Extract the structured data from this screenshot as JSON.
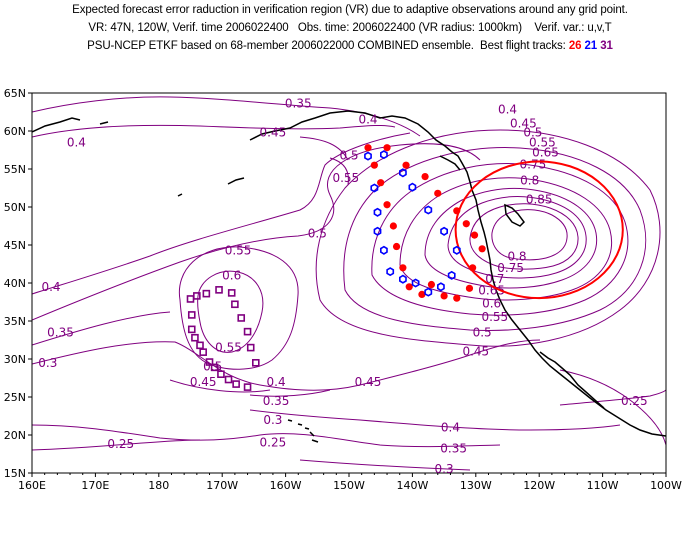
{
  "header": {
    "line1": "Expected forecast error raduction in verification region (VR) due to adaptive observations around any grid point.",
    "line2": "VR: 47N, 120W, Verif. time 2006022400   Obs. time: 2006022400 (VR radius: 1000km)    Verif. var.: u,v,T",
    "line3": "PSU-NCEP ETKF based on 68-member 2006022000 COMBINED ensemble.  Best flight tracks: ",
    "tracks": [
      "26",
      "21",
      "31"
    ]
  },
  "colors": {
    "contour": "#800080",
    "track26": "#ff0000",
    "track21": "#0000ff",
    "track31": "#800080",
    "circle": "#ff0000"
  },
  "axes": {
    "lon_labels": [
      "160E",
      "170E",
      "180",
      "170W",
      "160W",
      "150W",
      "140W",
      "130W",
      "120W",
      "110W",
      "100W"
    ],
    "lat_labels": [
      "15N",
      "20N",
      "25N",
      "30N",
      "35N",
      "40N",
      "45N",
      "50N",
      "55N",
      "60N",
      "65N"
    ],
    "lon_range": [
      160,
      260
    ],
    "lat_range": [
      15,
      65
    ]
  },
  "verification_region": {
    "lat": 47,
    "lon": 240,
    "radius_km": 1000
  },
  "contour_labels": [
    {
      "text": "0.35",
      "lon": 202,
      "lat": 63.6
    },
    {
      "text": "0.4",
      "lon": 213,
      "lat": 61.5
    },
    {
      "text": "0.4",
      "lon": 167,
      "lat": 58.5
    },
    {
      "text": "0.45",
      "lon": 198,
      "lat": 59.8
    },
    {
      "text": "0.5",
      "lon": 210,
      "lat": 56.8
    },
    {
      "text": "0.55",
      "lon": 209.5,
      "lat": 53.8
    },
    {
      "text": "0.4",
      "lon": 235,
      "lat": 62.8
    },
    {
      "text": "0.45",
      "lon": 237.5,
      "lat": 61
    },
    {
      "text": "0.5",
      "lon": 239,
      "lat": 59.8
    },
    {
      "text": "0.55",
      "lon": 240.5,
      "lat": 58.5
    },
    {
      "text": "0.65",
      "lon": 241,
      "lat": 57.2
    },
    {
      "text": "0.75",
      "lon": 239,
      "lat": 55.6
    },
    {
      "text": "0.8",
      "lon": 238.5,
      "lat": 53.5
    },
    {
      "text": "0.85",
      "lon": 240,
      "lat": 51
    },
    {
      "text": "0.8",
      "lon": 236.5,
      "lat": 43.5
    },
    {
      "text": "0.75",
      "lon": 235.5,
      "lat": 42
    },
    {
      "text": "0.7",
      "lon": 233,
      "lat": 40.5
    },
    {
      "text": "0.65",
      "lon": 232.5,
      "lat": 39
    },
    {
      "text": "0.6",
      "lon": 232.5,
      "lat": 37.3
    },
    {
      "text": "0.55",
      "lon": 233,
      "lat": 35.5
    },
    {
      "text": "0.5",
      "lon": 231,
      "lat": 33.5
    },
    {
      "text": "0.45",
      "lon": 230,
      "lat": 31
    },
    {
      "text": "0.5",
      "lon": 205,
      "lat": 46.5
    },
    {
      "text": "0.55",
      "lon": 192.5,
      "lat": 44.3
    },
    {
      "text": "0.6",
      "lon": 191.5,
      "lat": 41
    },
    {
      "text": "0.4",
      "lon": 163,
      "lat": 39.5
    },
    {
      "text": "0.35",
      "lon": 164.5,
      "lat": 33.5
    },
    {
      "text": "0.3",
      "lon": 162.5,
      "lat": 29.5
    },
    {
      "text": "0.55",
      "lon": 191,
      "lat": 31.5
    },
    {
      "text": "0.5",
      "lon": 188.5,
      "lat": 29
    },
    {
      "text": "0.45",
      "lon": 187,
      "lat": 27
    },
    {
      "text": "0.4",
      "lon": 198.5,
      "lat": 27
    },
    {
      "text": "0.35",
      "lon": 198.5,
      "lat": 24.5
    },
    {
      "text": "0.3",
      "lon": 198,
      "lat": 22
    },
    {
      "text": "0.45",
      "lon": 213,
      "lat": 27
    },
    {
      "text": "0.25",
      "lon": 174,
      "lat": 18.8
    },
    {
      "text": "0.25",
      "lon": 198,
      "lat": 19
    },
    {
      "text": "0.4",
      "lon": 226,
      "lat": 21
    },
    {
      "text": "0.35",
      "lon": 226.5,
      "lat": 18.2
    },
    {
      "text": "0.3",
      "lon": 225,
      "lat": 15.5
    },
    {
      "text": "0.25",
      "lon": 255,
      "lat": 24.5
    }
  ],
  "tracks": {
    "track26": [
      {
        "lon": 213,
        "lat": 57.8
      },
      {
        "lon": 214,
        "lat": 55.5
      },
      {
        "lon": 215,
        "lat": 53.2
      },
      {
        "lon": 216,
        "lat": 50.3
      },
      {
        "lon": 217,
        "lat": 47.5
      },
      {
        "lon": 217.5,
        "lat": 44.8
      },
      {
        "lon": 218.5,
        "lat": 42
      },
      {
        "lon": 219.5,
        "lat": 39.5
      },
      {
        "lon": 221.5,
        "lat": 38.5
      },
      {
        "lon": 223,
        "lat": 39.8
      },
      {
        "lon": 225,
        "lat": 38.3
      },
      {
        "lon": 227,
        "lat": 38
      },
      {
        "lon": 229,
        "lat": 39.3
      },
      {
        "lon": 229.5,
        "lat": 42
      },
      {
        "lon": 231,
        "lat": 44.5
      },
      {
        "lon": 229.8,
        "lat": 46.3
      },
      {
        "lon": 228.5,
        "lat": 47.8
      },
      {
        "lon": 227,
        "lat": 49.5
      },
      {
        "lon": 224,
        "lat": 51.8
      },
      {
        "lon": 222,
        "lat": 54
      },
      {
        "lon": 219,
        "lat": 55.5
      },
      {
        "lon": 216,
        "lat": 57.8
      }
    ],
    "track21": [
      {
        "lon": 213,
        "lat": 56.7
      },
      {
        "lon": 214,
        "lat": 52.5
      },
      {
        "lon": 214.5,
        "lat": 49.3
      },
      {
        "lon": 214.5,
        "lat": 46.8
      },
      {
        "lon": 215.5,
        "lat": 44.3
      },
      {
        "lon": 216.5,
        "lat": 41.5
      },
      {
        "lon": 218.5,
        "lat": 40.5
      },
      {
        "lon": 220.5,
        "lat": 40
      },
      {
        "lon": 222.5,
        "lat": 38.8
      },
      {
        "lon": 224.5,
        "lat": 39.5
      },
      {
        "lon": 226.2,
        "lat": 41
      },
      {
        "lon": 227,
        "lat": 44.3
      },
      {
        "lon": 225,
        "lat": 46.8
      },
      {
        "lon": 222.5,
        "lat": 49.6
      },
      {
        "lon": 220,
        "lat": 52.6
      },
      {
        "lon": 218.5,
        "lat": 54.5
      },
      {
        "lon": 215.5,
        "lat": 56.9
      }
    ],
    "track31": [
      {
        "lon": 185,
        "lat": 37.9
      },
      {
        "lon": 185.2,
        "lat": 35.8
      },
      {
        "lon": 185.2,
        "lat": 33.9
      },
      {
        "lon": 185.7,
        "lat": 32.8
      },
      {
        "lon": 186.5,
        "lat": 31.8
      },
      {
        "lon": 187,
        "lat": 30.9
      },
      {
        "lon": 188,
        "lat": 29.6
      },
      {
        "lon": 188.8,
        "lat": 28.9
      },
      {
        "lon": 189.8,
        "lat": 28
      },
      {
        "lon": 191,
        "lat": 27.3
      },
      {
        "lon": 192.2,
        "lat": 26.7
      },
      {
        "lon": 194,
        "lat": 26.3
      },
      {
        "lon": 195.3,
        "lat": 29.5
      },
      {
        "lon": 194.5,
        "lat": 31.5
      },
      {
        "lon": 194,
        "lat": 33.6
      },
      {
        "lon": 193,
        "lat": 35.4
      },
      {
        "lon": 192,
        "lat": 37.2
      },
      {
        "lon": 191.5,
        "lat": 38.7
      },
      {
        "lon": 189.5,
        "lat": 39.1
      },
      {
        "lon": 187.5,
        "lat": 38.6
      },
      {
        "lon": 186,
        "lat": 38.3
      }
    ]
  }
}
